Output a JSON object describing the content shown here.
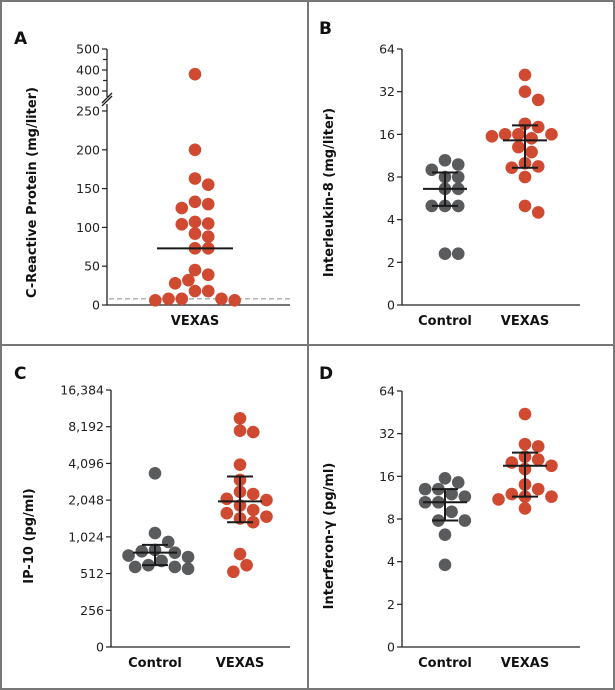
{
  "colors": {
    "control": "#5a5b5d",
    "vexas": "#d04a31",
    "frame": "#777777"
  },
  "chart_data": [
    {
      "panel": "A",
      "type": "scatter",
      "ylabel": "C-Reactive Protein (mg/liter)",
      "scale": "linear-broken",
      "axis_break": [
        250,
        300
      ],
      "yticks": [
        "0",
        "50",
        "100",
        "150",
        "200",
        "250",
        "300",
        "400",
        "500"
      ],
      "ytick_values": [
        0,
        50,
        100,
        150,
        200,
        250,
        300,
        400,
        500
      ],
      "minor_ticks": [
        350,
        450
      ],
      "reference_line": 8,
      "categories": [
        "VEXAS"
      ],
      "groups": [
        {
          "name": "VEXAS",
          "color_key": "vexas",
          "median": 73,
          "values": [
            380,
            200,
            163,
            155,
            133,
            130,
            125,
            107,
            105,
            104,
            92,
            88,
            73,
            73,
            45,
            39,
            32,
            28,
            18,
            18,
            8,
            8,
            8,
            6,
            6
          ]
        }
      ]
    },
    {
      "panel": "B",
      "type": "scatter",
      "ylabel": "Interleukin-8 (mg/liter)",
      "scale": "log2",
      "yticks": [
        "0",
        "2",
        "4",
        "8",
        "16",
        "32",
        "64"
      ],
      "ytick_values": [
        1,
        2,
        4,
        8,
        16,
        32,
        64
      ],
      "categories": [
        "Control",
        "VEXAS"
      ],
      "groups": [
        {
          "name": "Control",
          "color_key": "control",
          "median": 6.6,
          "iqr": [
            5.0,
            8.6
          ],
          "values": [
            10.5,
            9.8,
            9.0,
            8.0,
            8.0,
            6.6,
            6.6,
            5.0,
            5.0,
            5.0,
            2.3,
            2.3
          ]
        },
        {
          "name": "VEXAS",
          "color_key": "vexas",
          "median": 14.5,
          "iqr": [
            9.3,
            18.5
          ],
          "values": [
            42,
            32,
            28,
            19,
            18,
            16,
            16,
            16,
            15.5,
            15,
            13,
            12,
            10,
            9.5,
            9.3,
            8,
            5,
            4.5
          ]
        }
      ]
    },
    {
      "panel": "C",
      "type": "scatter",
      "ylabel": "IP-10 (pg/ml)",
      "scale": "log2",
      "yticks": [
        "0",
        "256",
        "512",
        "1,024",
        "2,048",
        "4,096",
        "8,192",
        "16,384"
      ],
      "ytick_values": [
        128,
        256,
        512,
        1024,
        2048,
        4096,
        8192,
        16384
      ],
      "categories": [
        "Control",
        "VEXAS"
      ],
      "groups": [
        {
          "name": "Control",
          "color_key": "control",
          "median": 760,
          "iqr": [
            600,
            880
          ],
          "values": [
            3400,
            1100,
            930,
            800,
            780,
            760,
            720,
            700,
            650,
            600,
            580,
            580,
            560
          ]
        },
        {
          "name": "VEXAS",
          "color_key": "vexas",
          "median": 2000,
          "iqr": [
            1350,
            3200
          ],
          "values": [
            9600,
            7600,
            7400,
            4000,
            3000,
            2400,
            2300,
            2100,
            2050,
            1850,
            1700,
            1600,
            1500,
            1450,
            1350,
            740,
            600,
            530
          ]
        }
      ]
    },
    {
      "panel": "D",
      "type": "scatter",
      "ylabel": "Interferon-γ (pg/ml)",
      "scale": "log2",
      "yticks": [
        "0",
        "2",
        "4",
        "8",
        "16",
        "32",
        "64"
      ],
      "ytick_values": [
        1,
        2,
        4,
        8,
        16,
        32,
        64
      ],
      "categories": [
        "Control",
        "VEXAS"
      ],
      "groups": [
        {
          "name": "Control",
          "color_key": "control",
          "median": 10.5,
          "iqr": [
            7.8,
            13
          ],
          "values": [
            15.5,
            14.5,
            13,
            13,
            12,
            11.5,
            10.5,
            10.5,
            9,
            7.8,
            7.8,
            6.2,
            3.8
          ]
        },
        {
          "name": "VEXAS",
          "color_key": "vexas",
          "median": 19,
          "iqr": [
            11.5,
            23.5
          ],
          "values": [
            44,
            27,
            26,
            22,
            21,
            20,
            19,
            18,
            14,
            13,
            12,
            11.5,
            11.5,
            11,
            9.5
          ]
        }
      ]
    }
  ]
}
